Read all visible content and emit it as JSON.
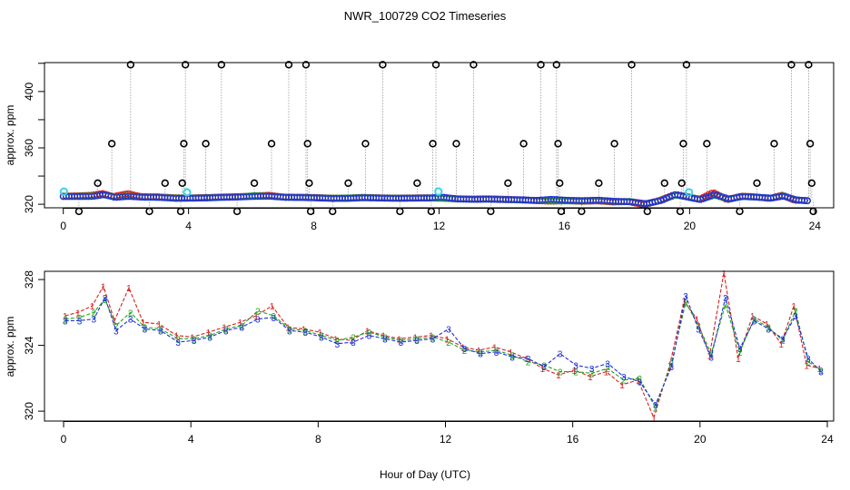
{
  "chart_data": [
    {
      "type": "scatter",
      "title": "NWR_100729  CO2 Timeseries",
      "xlabel": "",
      "ylabel": "approx. ppm",
      "xlim": [
        -0.6,
        24.6
      ],
      "ylim": [
        317.5,
        420.5
      ],
      "xticks": [
        0,
        4,
        8,
        12,
        16,
        20,
        24
      ],
      "yticks": [
        320,
        360,
        400
      ],
      "series_colors": {
        "red": "#d62020",
        "green": "#1fa51f",
        "blue": "#1f2fd8",
        "cyan": "#33d6e6",
        "open": "#000000",
        "spike_line": "#9a9a9a"
      },
      "cyan_points": [
        {
          "x": 0.02,
          "y": 329
        },
        {
          "x": 3.95,
          "y": 328.5
        },
        {
          "x": 11.98,
          "y": 329
        },
        {
          "x": 19.98,
          "y": 328.5
        }
      ],
      "open_circles": [
        {
          "x": 0.5,
          "y": 315
        },
        {
          "x": 1.1,
          "y": 335
        },
        {
          "x": 1.55,
          "y": 363
        },
        {
          "x": 2.15,
          "y": 419
        },
        {
          "x": 2.75,
          "y": 315
        },
        {
          "x": 3.25,
          "y": 335
        },
        {
          "x": 3.75,
          "y": 315
        },
        {
          "x": 3.8,
          "y": 335
        },
        {
          "x": 3.85,
          "y": 363
        },
        {
          "x": 3.9,
          "y": 419
        },
        {
          "x": 4.55,
          "y": 363
        },
        {
          "x": 5.05,
          "y": 419
        },
        {
          "x": 5.55,
          "y": 315
        },
        {
          "x": 6.1,
          "y": 335
        },
        {
          "x": 6.65,
          "y": 363
        },
        {
          "x": 7.2,
          "y": 419
        },
        {
          "x": 7.75,
          "y": 419
        },
        {
          "x": 7.8,
          "y": 363
        },
        {
          "x": 7.85,
          "y": 335
        },
        {
          "x": 7.9,
          "y": 315
        },
        {
          "x": 8.6,
          "y": 315
        },
        {
          "x": 9.1,
          "y": 335
        },
        {
          "x": 9.65,
          "y": 363
        },
        {
          "x": 10.2,
          "y": 419
        },
        {
          "x": 10.75,
          "y": 315
        },
        {
          "x": 11.3,
          "y": 335
        },
        {
          "x": 11.75,
          "y": 315
        },
        {
          "x": 11.8,
          "y": 363
        },
        {
          "x": 11.9,
          "y": 419
        },
        {
          "x": 12.55,
          "y": 363
        },
        {
          "x": 13.1,
          "y": 419
        },
        {
          "x": 13.65,
          "y": 315
        },
        {
          "x": 14.2,
          "y": 335
        },
        {
          "x": 14.7,
          "y": 363
        },
        {
          "x": 15.25,
          "y": 419
        },
        {
          "x": 15.75,
          "y": 419
        },
        {
          "x": 15.8,
          "y": 363
        },
        {
          "x": 15.85,
          "y": 335
        },
        {
          "x": 15.9,
          "y": 315
        },
        {
          "x": 16.55,
          "y": 315
        },
        {
          "x": 17.1,
          "y": 335
        },
        {
          "x": 17.6,
          "y": 363
        },
        {
          "x": 18.15,
          "y": 419
        },
        {
          "x": 18.65,
          "y": 315
        },
        {
          "x": 19.2,
          "y": 335
        },
        {
          "x": 19.7,
          "y": 315
        },
        {
          "x": 19.75,
          "y": 335
        },
        {
          "x": 19.8,
          "y": 363
        },
        {
          "x": 19.9,
          "y": 419
        },
        {
          "x": 20.55,
          "y": 363
        },
        {
          "x": 21.6,
          "y": 315
        },
        {
          "x": 22.15,
          "y": 335
        },
        {
          "x": 22.7,
          "y": 363
        },
        {
          "x": 23.25,
          "y": 419
        },
        {
          "x": 23.8,
          "y": 419
        },
        {
          "x": 23.85,
          "y": 363
        },
        {
          "x": 23.9,
          "y": 335
        },
        {
          "x": 23.95,
          "y": 315
        }
      ]
    },
    {
      "type": "scatter",
      "title": "",
      "xlabel": "Hour of Day (UTC)",
      "ylabel": "approx. ppm",
      "xlim": [
        -0.6,
        24.2
      ],
      "ylim": [
        319.4,
        328.5
      ],
      "xticks": [
        0,
        4,
        8,
        12,
        16,
        20,
        24
      ],
      "yticks": [
        320,
        324,
        328
      ],
      "marker_labels": [
        "1",
        "2",
        "3"
      ],
      "series_colors": {
        "1": "#d62020",
        "2": "#1fa51f",
        "3": "#1f2fd8"
      },
      "series": [
        {
          "name": "1",
          "points": [
            {
              "x": 0.05,
              "y": 325.8
            },
            {
              "x": 0.45,
              "y": 326.0
            },
            {
              "x": 0.9,
              "y": 326.4
            },
            {
              "x": 1.25,
              "y": 327.6
            },
            {
              "x": 1.6,
              "y": 325.5
            },
            {
              "x": 2.05,
              "y": 327.5
            },
            {
              "x": 2.5,
              "y": 325.4
            },
            {
              "x": 3.0,
              "y": 325.3
            },
            {
              "x": 3.55,
              "y": 324.6
            },
            {
              "x": 4.05,
              "y": 324.5
            },
            {
              "x": 4.55,
              "y": 324.8
            },
            {
              "x": 5.05,
              "y": 325.1
            },
            {
              "x": 5.55,
              "y": 325.4
            },
            {
              "x": 6.05,
              "y": 325.8
            },
            {
              "x": 6.55,
              "y": 326.4
            },
            {
              "x": 7.05,
              "y": 325.1
            },
            {
              "x": 7.55,
              "y": 325.0
            },
            {
              "x": 8.05,
              "y": 324.8
            },
            {
              "x": 8.55,
              "y": 324.4
            },
            {
              "x": 9.05,
              "y": 324.3
            },
            {
              "x": 9.55,
              "y": 324.9
            },
            {
              "x": 10.05,
              "y": 324.6
            },
            {
              "x": 10.55,
              "y": 324.4
            },
            {
              "x": 11.05,
              "y": 324.5
            },
            {
              "x": 11.55,
              "y": 324.6
            },
            {
              "x": 12.05,
              "y": 324.4
            },
            {
              "x": 12.55,
              "y": 323.9
            },
            {
              "x": 13.05,
              "y": 323.7
            },
            {
              "x": 13.55,
              "y": 323.9
            },
            {
              "x": 14.05,
              "y": 323.6
            },
            {
              "x": 14.55,
              "y": 323.2
            },
            {
              "x": 15.05,
              "y": 322.6
            },
            {
              "x": 15.55,
              "y": 322.2
            },
            {
              "x": 16.05,
              "y": 322.5
            },
            {
              "x": 16.55,
              "y": 322.1
            },
            {
              "x": 17.05,
              "y": 322.4
            },
            {
              "x": 17.55,
              "y": 321.6
            },
            {
              "x": 18.05,
              "y": 321.9
            },
            {
              "x": 18.55,
              "y": 319.6
            },
            {
              "x": 19.05,
              "y": 322.8
            },
            {
              "x": 19.5,
              "y": 326.7
            },
            {
              "x": 19.9,
              "y": 325.6
            },
            {
              "x": 20.3,
              "y": 323.4
            },
            {
              "x": 20.75,
              "y": 328.4
            },
            {
              "x": 21.2,
              "y": 323.2
            },
            {
              "x": 21.65,
              "y": 325.8
            },
            {
              "x": 22.1,
              "y": 325.3
            },
            {
              "x": 22.55,
              "y": 324.1
            },
            {
              "x": 22.95,
              "y": 326.4
            },
            {
              "x": 23.35,
              "y": 322.8
            },
            {
              "x": 23.75,
              "y": 322.6
            }
          ]
        },
        {
          "name": "2",
          "points": [
            {
              "x": 0.05,
              "y": 325.6
            },
            {
              "x": 0.5,
              "y": 325.7
            },
            {
              "x": 0.95,
              "y": 326.0
            },
            {
              "x": 1.3,
              "y": 326.8
            },
            {
              "x": 1.65,
              "y": 325.2
            },
            {
              "x": 2.1,
              "y": 326.0
            },
            {
              "x": 2.55,
              "y": 325.1
            },
            {
              "x": 3.05,
              "y": 325.0
            },
            {
              "x": 3.6,
              "y": 324.4
            },
            {
              "x": 4.1,
              "y": 324.4
            },
            {
              "x": 4.6,
              "y": 324.6
            },
            {
              "x": 5.1,
              "y": 325.0
            },
            {
              "x": 5.6,
              "y": 325.2
            },
            {
              "x": 6.1,
              "y": 326.1
            },
            {
              "x": 6.6,
              "y": 325.8
            },
            {
              "x": 7.1,
              "y": 325.0
            },
            {
              "x": 7.6,
              "y": 324.9
            },
            {
              "x": 8.1,
              "y": 324.6
            },
            {
              "x": 8.6,
              "y": 324.3
            },
            {
              "x": 9.1,
              "y": 324.5
            },
            {
              "x": 9.6,
              "y": 324.8
            },
            {
              "x": 10.1,
              "y": 324.5
            },
            {
              "x": 10.6,
              "y": 324.3
            },
            {
              "x": 11.1,
              "y": 324.4
            },
            {
              "x": 11.6,
              "y": 324.5
            },
            {
              "x": 12.1,
              "y": 324.2
            },
            {
              "x": 12.6,
              "y": 323.7
            },
            {
              "x": 13.1,
              "y": 323.6
            },
            {
              "x": 13.6,
              "y": 323.7
            },
            {
              "x": 14.1,
              "y": 323.4
            },
            {
              "x": 14.6,
              "y": 323.0
            },
            {
              "x": 15.1,
              "y": 322.8
            },
            {
              "x": 15.6,
              "y": 322.4
            },
            {
              "x": 16.1,
              "y": 322.4
            },
            {
              "x": 16.6,
              "y": 322.3
            },
            {
              "x": 17.1,
              "y": 322.6
            },
            {
              "x": 17.6,
              "y": 321.9
            },
            {
              "x": 18.1,
              "y": 322.0
            },
            {
              "x": 18.6,
              "y": 320.2
            },
            {
              "x": 19.1,
              "y": 322.9
            },
            {
              "x": 19.55,
              "y": 326.6
            },
            {
              "x": 19.95,
              "y": 325.2
            },
            {
              "x": 20.35,
              "y": 323.5
            },
            {
              "x": 20.8,
              "y": 326.5
            },
            {
              "x": 21.25,
              "y": 323.6
            },
            {
              "x": 21.7,
              "y": 325.6
            },
            {
              "x": 22.15,
              "y": 325.1
            },
            {
              "x": 22.6,
              "y": 324.3
            },
            {
              "x": 23.0,
              "y": 326.1
            },
            {
              "x": 23.4,
              "y": 323.0
            },
            {
              "x": 23.8,
              "y": 322.5
            }
          ]
        },
        {
          "name": "3",
          "points": [
            {
              "x": 0.05,
              "y": 325.5
            },
            {
              "x": 0.5,
              "y": 325.5
            },
            {
              "x": 0.95,
              "y": 325.6
            },
            {
              "x": 1.3,
              "y": 326.9
            },
            {
              "x": 1.65,
              "y": 324.9
            },
            {
              "x": 2.1,
              "y": 325.6
            },
            {
              "x": 2.55,
              "y": 325.0
            },
            {
              "x": 3.05,
              "y": 324.9
            },
            {
              "x": 3.6,
              "y": 324.2
            },
            {
              "x": 4.1,
              "y": 324.3
            },
            {
              "x": 4.6,
              "y": 324.5
            },
            {
              "x": 5.1,
              "y": 324.9
            },
            {
              "x": 5.6,
              "y": 325.1
            },
            {
              "x": 6.1,
              "y": 325.6
            },
            {
              "x": 6.6,
              "y": 325.7
            },
            {
              "x": 7.1,
              "y": 324.9
            },
            {
              "x": 7.6,
              "y": 324.8
            },
            {
              "x": 8.1,
              "y": 324.5
            },
            {
              "x": 8.6,
              "y": 324.1
            },
            {
              "x": 9.1,
              "y": 324.2
            },
            {
              "x": 9.6,
              "y": 324.6
            },
            {
              "x": 10.1,
              "y": 324.4
            },
            {
              "x": 10.6,
              "y": 324.2
            },
            {
              "x": 11.1,
              "y": 324.3
            },
            {
              "x": 11.6,
              "y": 324.4
            },
            {
              "x": 12.1,
              "y": 325.0
            },
            {
              "x": 12.6,
              "y": 323.8
            },
            {
              "x": 13.1,
              "y": 323.5
            },
            {
              "x": 13.6,
              "y": 323.6
            },
            {
              "x": 14.1,
              "y": 323.3
            },
            {
              "x": 14.6,
              "y": 323.2
            },
            {
              "x": 15.1,
              "y": 322.7
            },
            {
              "x": 15.6,
              "y": 323.5
            },
            {
              "x": 16.1,
              "y": 322.8
            },
            {
              "x": 16.6,
              "y": 322.6
            },
            {
              "x": 17.1,
              "y": 322.9
            },
            {
              "x": 17.6,
              "y": 322.1
            },
            {
              "x": 18.1,
              "y": 321.8
            },
            {
              "x": 18.6,
              "y": 320.4
            },
            {
              "x": 19.1,
              "y": 322.7
            },
            {
              "x": 19.55,
              "y": 327.0
            },
            {
              "x": 19.95,
              "y": 325.0
            },
            {
              "x": 20.35,
              "y": 323.3
            },
            {
              "x": 20.8,
              "y": 326.9
            },
            {
              "x": 21.25,
              "y": 323.8
            },
            {
              "x": 21.7,
              "y": 325.5
            },
            {
              "x": 22.15,
              "y": 325.0
            },
            {
              "x": 22.6,
              "y": 324.4
            },
            {
              "x": 23.0,
              "y": 325.8
            },
            {
              "x": 23.4,
              "y": 323.2
            },
            {
              "x": 23.8,
              "y": 322.4
            }
          ]
        }
      ]
    }
  ]
}
